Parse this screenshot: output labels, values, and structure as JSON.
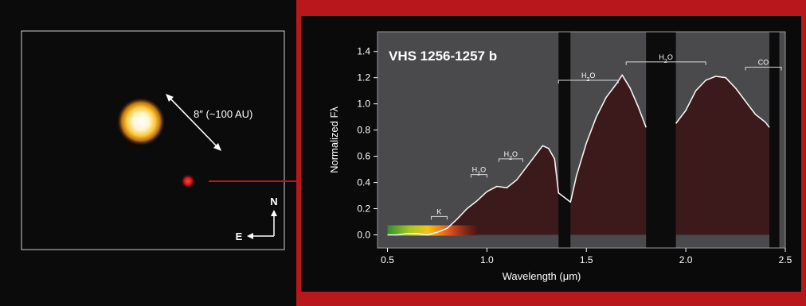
{
  "image_panel": {
    "separation_label": "8″ (~100 AU)",
    "compass": {
      "north": "N",
      "east": "E"
    }
  },
  "chart_data": {
    "type": "line",
    "title": "VHS 1256-1257 b",
    "xlabel": "Wavelength (μm)",
    "ylabel": "Normalized Fλ",
    "xlim": [
      0.45,
      2.5
    ],
    "ylim": [
      -0.1,
      1.55
    ],
    "xticks": [
      0.5,
      1.0,
      1.5,
      2.0,
      2.5
    ],
    "xtick_labels": [
      "0.5",
      "1.0",
      "1.5",
      "2.0",
      "2.5"
    ],
    "yticks": [
      0.0,
      0.2,
      0.4,
      0.6,
      0.8,
      1.0,
      1.2,
      1.4
    ],
    "ytick_labels": [
      "0.0",
      "0.2",
      "0.4",
      "0.6",
      "0.8",
      "1.0",
      "1.2",
      "1.4"
    ],
    "grid": false,
    "series": [
      {
        "x": [
          0.5,
          0.55,
          0.6,
          0.65,
          0.7,
          0.75,
          0.8,
          0.85,
          0.9,
          0.95,
          1.0,
          1.05,
          1.1,
          1.15,
          1.2,
          1.25,
          1.28,
          1.31,
          1.34,
          1.36,
          1.42,
          1.45,
          1.5,
          1.55,
          1.6,
          1.65,
          1.68,
          1.72,
          1.76,
          1.8,
          1.95,
          2.0,
          2.05,
          2.1,
          2.15,
          2.2,
          2.25,
          2.3,
          2.35,
          2.4,
          2.42
        ],
        "y": [
          0.0,
          0.0,
          0.01,
          0.01,
          0.0,
          0.02,
          0.05,
          0.12,
          0.2,
          0.26,
          0.33,
          0.37,
          0.36,
          0.42,
          0.52,
          0.62,
          0.68,
          0.66,
          0.58,
          0.32,
          0.25,
          0.45,
          0.7,
          0.9,
          1.05,
          1.15,
          1.22,
          1.12,
          0.98,
          0.82,
          0.85,
          0.95,
          1.1,
          1.18,
          1.21,
          1.2,
          1.12,
          1.02,
          0.92,
          0.86,
          0.82
        ]
      }
    ],
    "telluric_gaps": [
      [
        1.36,
        1.42
      ],
      [
        1.8,
        1.95
      ],
      [
        2.42,
        2.47
      ]
    ],
    "annotations": [
      {
        "label": "K",
        "x1": 0.72,
        "x2": 0.8,
        "y": 0.14
      },
      {
        "label": "H2O",
        "x1": 0.92,
        "x2": 1.0,
        "y": 0.46
      },
      {
        "label": "H2O",
        "x1": 1.06,
        "x2": 1.18,
        "y": 0.58
      },
      {
        "label": "H2O",
        "x1": 1.36,
        "x2": 1.66,
        "y": 1.18
      },
      {
        "label": "H2O",
        "x1": 1.7,
        "x2": 2.1,
        "y": 1.32
      },
      {
        "label": "CO",
        "x1": 2.3,
        "x2": 2.48,
        "y": 1.28
      }
    ]
  }
}
